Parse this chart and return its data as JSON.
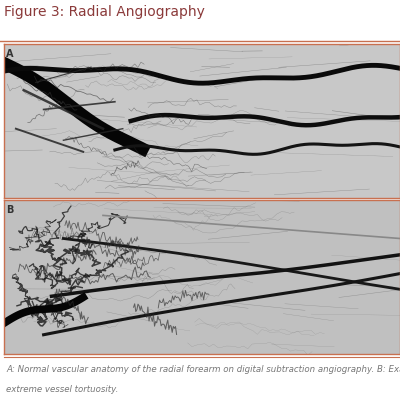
{
  "title": "Figure 3: Radial Angiography",
  "title_color": "#8B3A3A",
  "title_fontsize": 10,
  "title_fontstyle": "normal",
  "caption_text": "A: Normal vascular anatomy of the radial forearm on digital subtraction angiography. B: Exampl\nextreme vessel tortuosity.",
  "caption_fontsize": 6.2,
  "caption_color": "#777777",
  "bg_color": "#FFFFFF",
  "panel_bg_A": "#C8C8C8",
  "panel_bg_B": "#C0C0C0",
  "border_color": "#C87050",
  "border_lw": 1.0,
  "label_A": "A",
  "label_B": "B",
  "label_color": "#333333",
  "label_fontsize": 7,
  "vessel_color": "#111111",
  "vessel_color2": "#1a1a1a",
  "thin_vessel_color": "#2a2a2a",
  "seed_A": 10,
  "seed_B": 77
}
